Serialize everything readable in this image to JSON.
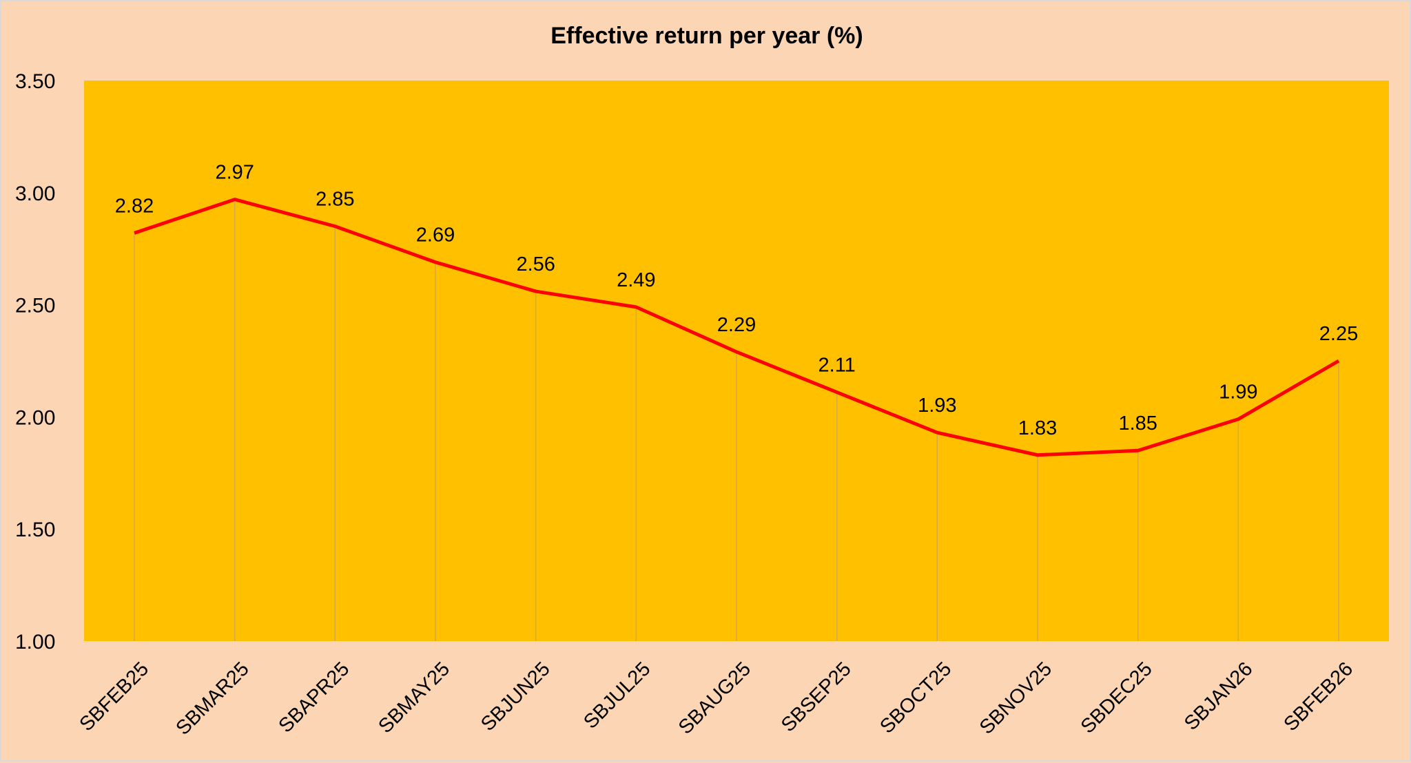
{
  "chart_data": {
    "type": "line",
    "title": "Effective return per year (%)",
    "xlabel": "",
    "ylabel": "",
    "categories": [
      "SBFEB25",
      "SBMAR25",
      "SBAPR25",
      "SBMAY25",
      "SBJUN25",
      "SBJUL25",
      "SBAUG25",
      "SBSEP25",
      "SBOCT25",
      "SBNOV25",
      "SBDEC25",
      "SBJAN26",
      "SBFEB26"
    ],
    "series": [
      {
        "values": [
          2.82,
          2.97,
          2.85,
          2.69,
          2.56,
          2.49,
          2.29,
          2.11,
          1.93,
          1.83,
          1.85,
          1.99,
          2.25
        ],
        "color": "#ff0000"
      }
    ],
    "data_labels": [
      "2.82",
      "2.97",
      "2.85",
      "2.69",
      "2.56",
      "2.49",
      "2.29",
      "2.11",
      "1.93",
      "1.83",
      "1.85",
      "1.99",
      "2.25"
    ],
    "ylim": [
      1.0,
      3.5
    ],
    "yticks": [
      "1.00",
      "1.50",
      "2.00",
      "2.50",
      "3.00",
      "3.50"
    ],
    "grid": "vertical drop lines",
    "legend": "none",
    "colors": {
      "background": "#fcd5b5",
      "plot_area": "#ffc000",
      "line": "#ff0000",
      "drop_lines": "#d6a84a"
    }
  }
}
